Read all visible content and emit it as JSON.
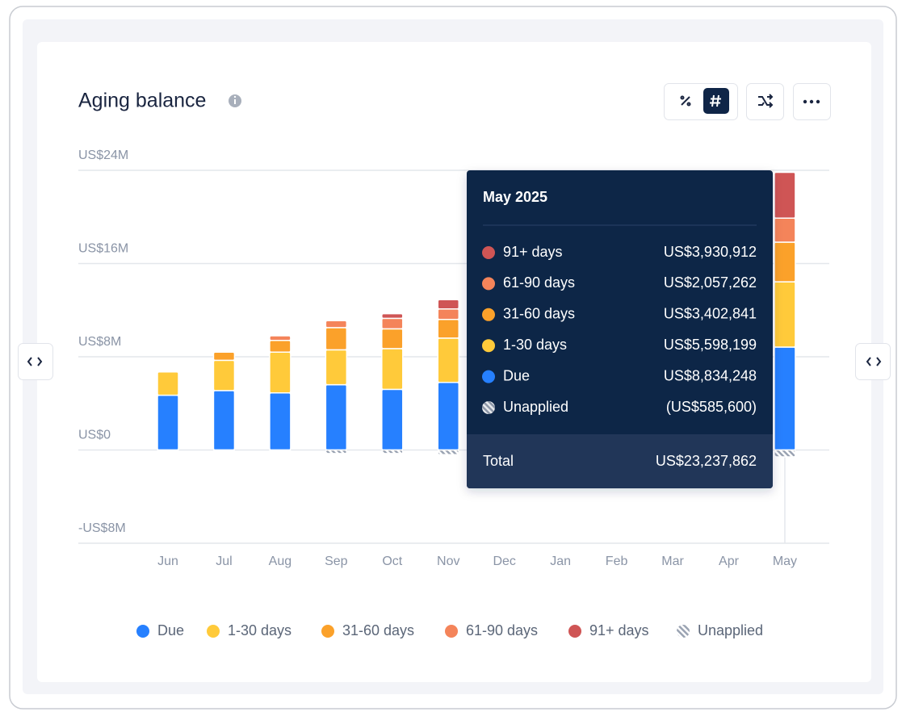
{
  "chart_data": {
    "type": "stacked-bar",
    "title": "Aging balance",
    "categories": [
      "Jun",
      "Jul",
      "Aug",
      "Sep",
      "Oct",
      "Nov",
      "Dec",
      "Jan",
      "Feb",
      "Mar",
      "Apr",
      "May"
    ],
    "series": [
      {
        "name": "Due",
        "color": "#2680ff",
        "values": [
          4700000,
          5100000,
          4900000,
          5600000,
          5200000,
          5800000,
          null,
          null,
          null,
          null,
          null,
          8834248
        ],
        "value_labels": [
          null,
          null,
          null,
          null,
          null,
          null,
          null,
          null,
          null,
          null,
          null,
          "US$8,834,248"
        ]
      },
      {
        "name": "1-30 days",
        "color": "#ffca3a",
        "values": [
          2000000,
          2600000,
          3500000,
          3000000,
          3500000,
          3800000,
          null,
          null,
          null,
          null,
          null,
          5598199
        ],
        "value_labels": [
          null,
          null,
          null,
          null,
          null,
          null,
          null,
          null,
          null,
          null,
          null,
          "US$5,598,199"
        ]
      },
      {
        "name": "31-60 days",
        "color": "#fba12a",
        "values": [
          0,
          700000,
          1000000,
          1900000,
          1700000,
          1600000,
          null,
          null,
          null,
          null,
          null,
          3402841
        ],
        "value_labels": [
          null,
          null,
          null,
          null,
          null,
          null,
          null,
          null,
          null,
          null,
          null,
          "US$3,402,841"
        ]
      },
      {
        "name": "61-90 days",
        "color": "#f4845a",
        "values": [
          0,
          0,
          400000,
          600000,
          900000,
          900000,
          null,
          null,
          null,
          null,
          null,
          2057262
        ],
        "value_labels": [
          null,
          null,
          null,
          null,
          null,
          null,
          null,
          null,
          null,
          null,
          null,
          "US$2,057,262"
        ]
      },
      {
        "name": "91+ days",
        "color": "#cf5555",
        "values": [
          0,
          0,
          0,
          100000,
          400000,
          800000,
          null,
          null,
          null,
          null,
          null,
          3930912
        ],
        "value_labels": [
          null,
          null,
          null,
          null,
          null,
          null,
          null,
          null,
          null,
          null,
          null,
          "US$3,930,912"
        ]
      },
      {
        "name": "Unapplied",
        "color": "#9aa3b2",
        "hatched": true,
        "values": [
          -100000,
          -100000,
          -100000,
          -300000,
          -300000,
          -400000,
          null,
          null,
          null,
          null,
          null,
          -585600
        ],
        "value_labels": [
          null,
          null,
          null,
          null,
          null,
          null,
          null,
          null,
          null,
          null,
          null,
          "(US$585,600)"
        ]
      }
    ],
    "ylim": [
      -8000000,
      24000000
    ],
    "yticks": [
      {
        "value": -8000000,
        "label": "-US$8M"
      },
      {
        "value": 0,
        "label": "US$0"
      },
      {
        "value": 8000000,
        "label": "US$8M"
      },
      {
        "value": 16000000,
        "label": "US$16M"
      },
      {
        "value": 24000000,
        "label": "US$24M"
      }
    ],
    "grid": true,
    "legend": "bottom",
    "tooltip": {
      "title": "May 2025",
      "total_label": "Total",
      "total": "US$23,237,862"
    }
  }
}
